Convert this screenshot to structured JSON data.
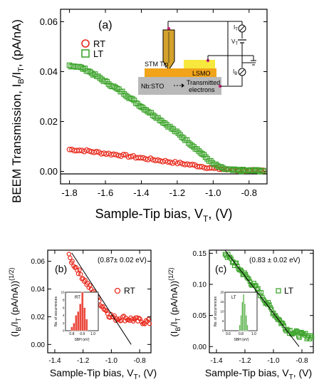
{
  "chart_data": [
    {
      "panel": "(a)",
      "type": "scatter",
      "xlabel_main": "Sample-Tip bias, V",
      "xlabel_sub": "T",
      "xlabel_tail": ", (V)",
      "ylabel_pre": "BEEM Transmission, I",
      "ylabel_sub1": "B",
      "ylabel_mid": "/I",
      "ylabel_sub2": "T",
      "ylabel_tail": ", (pA/nA)",
      "xlim": [
        -1.85,
        -0.7
      ],
      "ylim": [
        -0.005,
        0.065
      ],
      "xticks": [
        "-1.8",
        "-1.6",
        "-1.4",
        "-1.2",
        "-1.0",
        "-0.8"
      ],
      "xtick_values": [
        -1.8,
        -1.6,
        -1.4,
        -1.2,
        -1.0,
        -0.8
      ],
      "yticks": [
        "0.00",
        "0.02",
        "0.04",
        "0.06"
      ],
      "ytick_values": [
        0,
        0.02,
        0.04,
        0.06
      ],
      "legend_position": "top-left",
      "series": [
        {
          "name": "RT",
          "color": "#e8291c",
          "marker": "circle",
          "x_start": -1.8,
          "x_end": -0.72,
          "count": 80,
          "anchors_x": [
            -1.8,
            -1.7,
            -1.6,
            -1.5,
            -1.4,
            -1.3,
            -1.2,
            -1.1,
            -1.0,
            -0.9,
            -0.8,
            -0.72
          ],
          "anchors_y": [
            0.0088,
            0.0082,
            0.0072,
            0.0064,
            0.0054,
            0.0044,
            0.0034,
            0.0024,
            0.0012,
            0.0006,
            0.0003,
            0.0003
          ]
        },
        {
          "name": "LT",
          "color": "#3fa52e",
          "marker": "square",
          "x_start": -1.8,
          "x_end": -0.72,
          "count": 115,
          "anchors_x": [
            -1.8,
            -1.75,
            -1.7,
            -1.6,
            -1.5,
            -1.4,
            -1.3,
            -1.2,
            -1.1,
            -1.0,
            -0.95,
            -0.9,
            -0.8,
            -0.72
          ],
          "anchors_y": [
            0.0425,
            0.042,
            0.0405,
            0.036,
            0.0315,
            0.026,
            0.021,
            0.0155,
            0.0095,
            0.003,
            0.0012,
            0.0005,
            0.0003,
            0.0003
          ]
        }
      ],
      "inset": {
        "labels": {
          "stm_tip": "STM Tip",
          "lsmo": "LSMO",
          "substrate": "Nb:STO",
          "transmitted_1": "Transmitted",
          "transmitted_2": "electrons",
          "it_main": "I",
          "it_sub": "T",
          "vt_main": "V",
          "vt_sub": "T",
          "ib_main": "I",
          "ib_sub": "B"
        }
      }
    },
    {
      "panel": "(b)",
      "type": "scatter",
      "annotation": "(0.87± 0.02 eV)",
      "legend": "RT",
      "color": "#e8291c",
      "marker": "circle",
      "xlim": [
        -1.45,
        -0.72
      ],
      "ylim": [
        -0.006,
        0.068
      ],
      "xticks": [
        "-1.4",
        "-1.2",
        "-1.0",
        "-0.8"
      ],
      "xtick_values": [
        -1.4,
        -1.2,
        -1.0,
        -0.8
      ],
      "yticks": [
        "0.00",
        "0.02",
        "0.04",
        "0.06"
      ],
      "ytick_values": [
        0,
        0.02,
        0.04,
        0.06
      ],
      "fit_line": {
        "x": [
          -1.28,
          -0.86
        ],
        "y": [
          0.066,
          0.0
        ]
      },
      "data_x_start": -1.3,
      "data_x_end": -0.73,
      "count": 70,
      "anchors_x": [
        -1.3,
        -1.2,
        -1.1,
        -1.02,
        -0.98,
        -0.9,
        -0.8,
        -0.73
      ],
      "anchors_y": [
        0.063,
        0.048,
        0.033,
        0.022,
        0.019,
        0.019,
        0.017,
        0.016
      ],
      "histogram": {
        "label": "RT",
        "xlabel": "SBH (eV)",
        "ylabel": "No. of occurrences",
        "xticks": [
          "0.8",
          "0.9",
          "1.0"
        ],
        "xtick_values": [
          0.8,
          0.9,
          1.0
        ],
        "yticks": [
          "0",
          "2",
          "4",
          "6",
          "8",
          "10"
        ],
        "ytick_values": [
          0,
          2,
          4,
          6,
          8,
          10
        ],
        "xlim": [
          0.74,
          1.05
        ],
        "ylim": [
          0,
          10
        ],
        "bin_centers": [
          0.8,
          0.82,
          0.84,
          0.86,
          0.88,
          0.9,
          0.92,
          0.94
        ],
        "counts": [
          1,
          2,
          4,
          5,
          7,
          10,
          6,
          3
        ]
      },
      "xlabel_main": "Sample-Tip bias, V",
      "xlabel_sub": "T",
      "xlabel_tail": ", (V)",
      "ylabel_open": "(I",
      "ylabel_sub1": "B",
      "ylabel_mid": "/I",
      "ylabel_sub2": "T",
      "ylabel_tail": " (pA/nA))",
      "ylabel_sup": "(1/2)"
    },
    {
      "panel": "(c)",
      "type": "scatter",
      "annotation": "(0.83 ± 0.02 eV)",
      "legend": "LT",
      "color": "#3fa52e",
      "marker": "square",
      "xlim": [
        -1.45,
        -0.72
      ],
      "ylim": [
        -0.01,
        0.155
      ],
      "xticks": [
        "-1.4",
        "-1.2",
        "-1.0",
        "-0.8"
      ],
      "xtick_values": [
        -1.4,
        -1.2,
        -1.0,
        -0.8
      ],
      "yticks": [
        "0.00",
        "0.05",
        "0.10",
        "0.15"
      ],
      "ytick_values": [
        0,
        0.05,
        0.1,
        0.15
      ],
      "fit_line": {
        "x": [
          -1.34,
          -0.82
        ],
        "y": [
          0.155,
          0.0
        ]
      },
      "data_x_start": -1.34,
      "data_x_end": -0.73,
      "count": 85,
      "anchors_x": [
        -1.34,
        -1.2,
        -1.1,
        -1.0,
        -0.95,
        -0.9,
        -0.85,
        -0.8,
        -0.73
      ],
      "anchors_y": [
        0.15,
        0.115,
        0.088,
        0.055,
        0.04,
        0.027,
        0.022,
        0.018,
        0.016
      ],
      "histogram": {
        "label": "LT",
        "xlabel": "SBH (eV)",
        "ylabel": "No. of occurrences",
        "xticks": [
          "0.6",
          "0.8",
          "1.0"
        ],
        "xtick_values": [
          0.6,
          0.8,
          1.0
        ],
        "yticks": [
          "0",
          "5",
          "10",
          "15",
          "20"
        ],
        "ytick_values": [
          0,
          5,
          10,
          15,
          20
        ],
        "xlim": [
          0.55,
          1.05
        ],
        "ylim": [
          0,
          20
        ],
        "bin_centers": [
          0.78,
          0.8,
          0.82,
          0.84,
          0.86,
          0.88,
          0.9
        ],
        "counts": [
          3,
          8,
          15,
          19,
          14,
          8,
          3
        ]
      },
      "xlabel_main": "Sample-Tip bias, V",
      "xlabel_sub": "T",
      "xlabel_tail": ", (V)",
      "ylabel_open": "(I",
      "ylabel_sub1": "B",
      "ylabel_mid": "/I",
      "ylabel_sub2": "T",
      "ylabel_tail": " (pA/nA))",
      "ylabel_sup": "(1/2)"
    }
  ]
}
